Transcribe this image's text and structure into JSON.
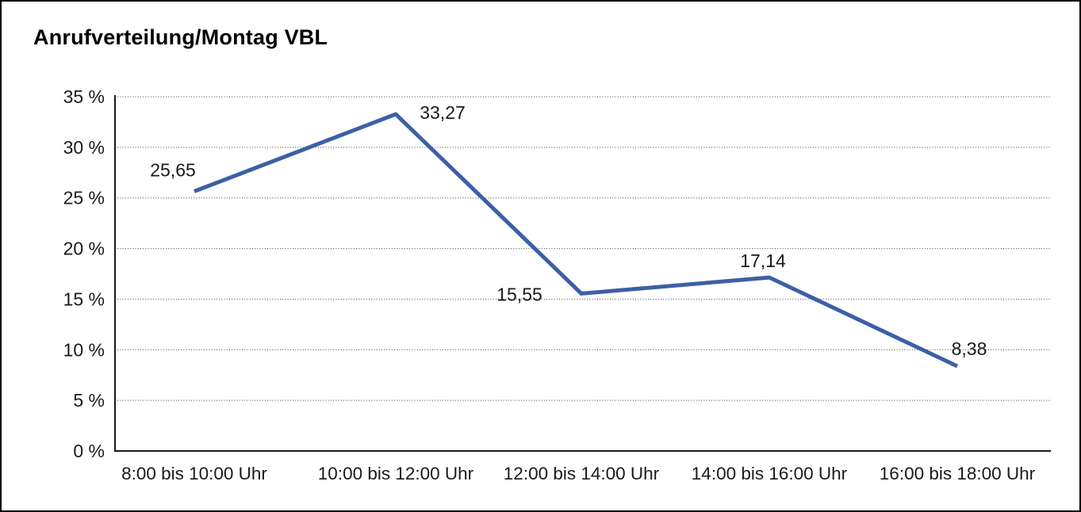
{
  "chart_data": {
    "type": "line",
    "title": "Anrufverteilung/Montag VBL",
    "categories": [
      "8:00 bis 10:00 Uhr",
      "10:00 bis 12:00 Uhr",
      "12:00 bis 14:00 Uhr",
      "14:00 bis 16:00 Uhr",
      "16:00 bis 18:00 Uhr"
    ],
    "values": [
      25.65,
      33.27,
      15.55,
      17.14,
      8.38
    ],
    "point_labels": [
      "25,65",
      "33,27",
      "15,55",
      "17,14",
      "8,38"
    ],
    "xlabel": "",
    "ylabel": "",
    "ylim": [
      0,
      35
    ],
    "y_tick_step": 5,
    "y_ticks": [
      "0 %",
      "5 %",
      "10 %",
      "15 %",
      "20 %",
      "25 %",
      "30 %",
      "35 %"
    ],
    "grid": "horizontal-dotted",
    "legend": "none",
    "series_name": "Anrufverteilung Montag VBL",
    "line_color": "#3D5FA7",
    "axis_color": "#1a1a1a",
    "grid_color": "#3c3c3c",
    "text_color": "#1a1a1a",
    "background_color": "#ffffff",
    "frame_border_color": "#000000"
  }
}
